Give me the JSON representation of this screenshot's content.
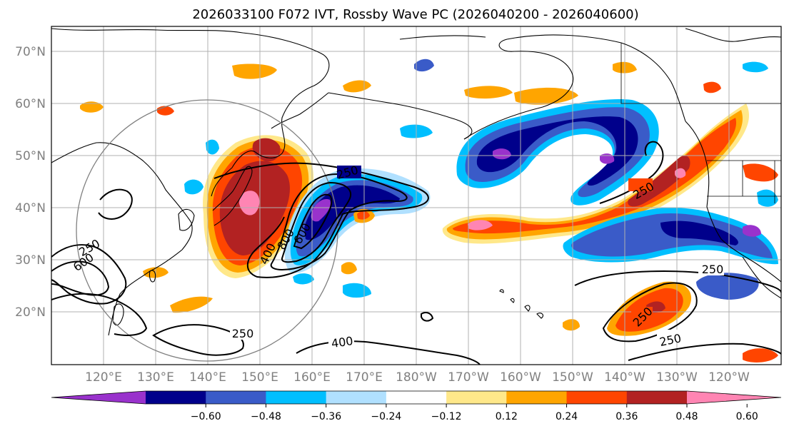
{
  "title": "2026033100 F072 IVT, Rossby Wave PC (2026040200 - 2026040600)",
  "lat_labels": [
    "70°N",
    "60°N",
    "50°N",
    "40°N",
    "30°N",
    "20°N"
  ],
  "lon_labels": [
    "120°E",
    "130°E",
    "140°E",
    "150°E",
    "160°E",
    "170°E",
    "180°W",
    "170°W",
    "160°W",
    "150°W",
    "140°W",
    "130°W",
    "120°W"
  ],
  "colorbar": {
    "ticks": [
      "−0.60",
      "−0.48",
      "−0.36",
      "−0.24",
      "−0.12",
      "0.12",
      "0.24",
      "0.36",
      "0.48",
      "0.60"
    ],
    "colors": [
      "#9932CC",
      "#00008B",
      "#3A5BC8",
      "#00BFFF",
      "#B0E0FF",
      "#FFFFFF",
      "#FFE88A",
      "#FFA500",
      "#FF4500",
      "#B22222",
      "#FF85B3"
    ]
  },
  "contour_labels": [
    "250",
    "250",
    "250",
    "250",
    "250",
    "250",
    "400",
    "400",
    "600",
    "800",
    "600",
    "250"
  ],
  "map_extent": {
    "lon_range_deg": [
      110,
      250
    ],
    "lat_range_deg": [
      10,
      75
    ]
  }
}
